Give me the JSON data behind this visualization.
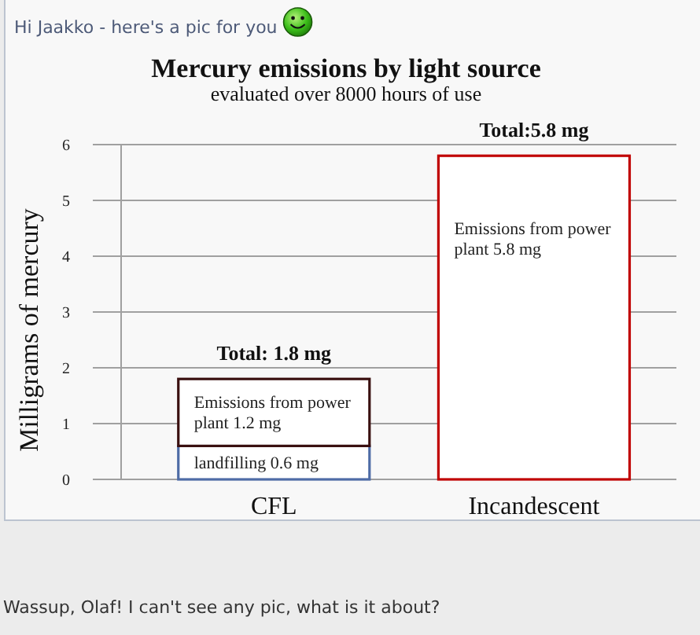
{
  "chart_data": {
    "type": "bar",
    "title": "Mercury emissions by light source",
    "subtitle": "evaluated over 8000 hours of use",
    "ylabel": "Milligrams of mercury",
    "categories": [
      "CFL",
      "Incandescent"
    ],
    "stacked": true,
    "series": [
      {
        "color": "#4e6ca6",
        "values": [
          0.6,
          null
        ],
        "value_labels": [
          "landfilling 0.6 mg",
          null
        ]
      },
      {
        "colors": [
          "#3a1010",
          "#c00000"
        ],
        "values": [
          1.2,
          5.8
        ],
        "value_labels": [
          "Emissions from power plant 1.2 mg",
          "Emissions from power plant 5.8 mg"
        ]
      }
    ],
    "totals": [
      "Total: 1.8 mg",
      "Total:5.8 mg"
    ],
    "ylim": [
      0,
      6
    ],
    "yticks": [
      0,
      1,
      2,
      3,
      4,
      5,
      6
    ],
    "grid": "y",
    "annotations": [
      "Hi Jaakko - here's a pic for you",
      "Wassup, Olaf! I can't see any pic, what is it about?"
    ]
  }
}
